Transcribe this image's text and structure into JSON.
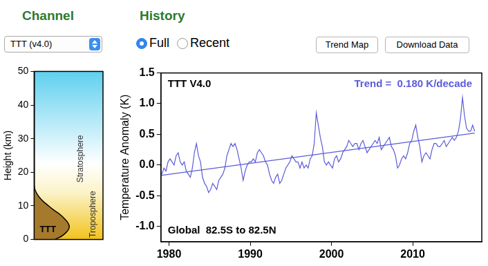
{
  "page": {
    "channel_heading": "Channel",
    "history_heading": "History",
    "channel_select": "TTT (v4.0)",
    "history_options": [
      "Full",
      "Recent"
    ],
    "history_selected": "Full",
    "buttons": [
      "Trend Map",
      "Download Data"
    ]
  },
  "chart_data": [
    {
      "type": "line",
      "ylabel": "Height (km)",
      "ylim": [
        0,
        50
      ],
      "yticks": [
        0,
        10,
        20,
        30,
        40,
        50
      ],
      "xlim": [
        0,
        1
      ],
      "tick_labels": "y",
      "grid": false,
      "annotations": [
        "Stratosphere",
        "Troposphere"
      ],
      "series": [
        {
          "name": "TTT",
          "color": "#a57a2c",
          "x": [
            0.3,
            0.4,
            0.46,
            0.5,
            0.51,
            0.49,
            0.45,
            0.4,
            0.34,
            0.27,
            0.21,
            0.15,
            0.1,
            0.06,
            0.03,
            0.01,
            0.0
          ],
          "values": [
            0,
            1,
            2,
            3,
            4,
            5,
            6,
            7,
            8,
            9,
            10,
            11,
            12,
            13,
            14,
            15,
            16
          ]
        }
      ]
    },
    {
      "type": "line",
      "ylabel": "Temperature Anomaly (K)",
      "xlim": [
        1979,
        2018.5
      ],
      "xticks": [
        1980,
        1990,
        2000,
        2010
      ],
      "ylim": [
        -1.25,
        1.5
      ],
      "yticks": [
        {
          "value": -1,
          "label": "-1.0"
        },
        -0.5,
        {
          "value": 0,
          "label": "0.0"
        },
        0.5,
        {
          "value": 1,
          "label": "1.0"
        },
        1.5
      ],
      "grid": false,
      "annotations": [
        {
          "text": "TTT V4.0",
          "color": "#000000"
        },
        {
          "text": "Trend =  0.180 K/decade",
          "color": "#5b5bd9"
        },
        {
          "text": "Global  82.5S to 82.5N",
          "color": "#000000"
        }
      ],
      "series": [
        {
          "color": "#5b5bd9",
          "line_style": "solid",
          "x": [
            1979.125,
            1979.375,
            1979.625,
            1979.875,
            1980.125,
            1980.375,
            1980.625,
            1980.875,
            1981.125,
            1981.375,
            1981.625,
            1981.875,
            1982.125,
            1982.375,
            1982.625,
            1982.875,
            1983.125,
            1983.375,
            1983.625,
            1983.875,
            1984.125,
            1984.375,
            1984.625,
            1984.875,
            1985.125,
            1985.375,
            1985.625,
            1985.875,
            1986.125,
            1986.375,
            1986.625,
            1986.875,
            1987.125,
            1987.375,
            1987.625,
            1987.875,
            1988.125,
            1988.375,
            1988.625,
            1988.875,
            1989.125,
            1989.375,
            1989.625,
            1989.875,
            1990.125,
            1990.375,
            1990.625,
            1990.875,
            1991.125,
            1991.375,
            1991.625,
            1991.875,
            1992.125,
            1992.375,
            1992.625,
            1992.875,
            1993.125,
            1993.375,
            1993.625,
            1993.875,
            1994.125,
            1994.375,
            1994.625,
            1994.875,
            1995.125,
            1995.375,
            1995.625,
            1995.875,
            1996.125,
            1996.375,
            1996.625,
            1996.875,
            1997.125,
            1997.375,
            1997.625,
            1997.875,
            1998.125,
            1998.375,
            1998.625,
            1998.875,
            1999.125,
            1999.375,
            1999.625,
            1999.875,
            2000.125,
            2000.375,
            2000.625,
            2000.875,
            2001.125,
            2001.375,
            2001.625,
            2001.875,
            2002.125,
            2002.375,
            2002.625,
            2002.875,
            2003.125,
            2003.375,
            2003.625,
            2003.875,
            2004.125,
            2004.375,
            2004.625,
            2004.875,
            2005.125,
            2005.375,
            2005.625,
            2005.875,
            2006.125,
            2006.375,
            2006.625,
            2006.875,
            2007.125,
            2007.375,
            2007.625,
            2007.875,
            2008.125,
            2008.375,
            2008.625,
            2008.875,
            2009.125,
            2009.375,
            2009.625,
            2009.875,
            2010.125,
            2010.375,
            2010.625,
            2010.875,
            2011.125,
            2011.375,
            2011.625,
            2011.875,
            2012.125,
            2012.375,
            2012.625,
            2012.875,
            2013.125,
            2013.375,
            2013.625,
            2013.875,
            2014.125,
            2014.375,
            2014.625,
            2014.875,
            2015.125,
            2015.375,
            2015.625,
            2015.875,
            2016.125,
            2016.375,
            2016.625,
            2016.875,
            2017.125,
            2017.375,
            2017.625
          ],
          "values": [
            -0.15,
            -0.05,
            -0.1,
            0.05,
            0.1,
            0.05,
            0.0,
            0.15,
            0.2,
            0.05,
            0.0,
            0.05,
            -0.1,
            -0.15,
            -0.2,
            -0.05,
            0.2,
            0.35,
            0.15,
            0.05,
            -0.2,
            -0.3,
            -0.35,
            -0.45,
            -0.4,
            -0.3,
            -0.35,
            -0.4,
            -0.25,
            -0.2,
            -0.15,
            -0.05,
            0.15,
            0.25,
            0.35,
            0.3,
            0.35,
            0.25,
            0.1,
            -0.05,
            -0.25,
            -0.1,
            0.0,
            0.05,
            0.05,
            0.1,
            0.05,
            0.2,
            0.25,
            0.2,
            0.15,
            0.05,
            0.0,
            -0.15,
            -0.25,
            -0.3,
            -0.2,
            -0.15,
            -0.3,
            -0.25,
            -0.15,
            -0.05,
            0.0,
            0.05,
            0.15,
            0.1,
            0.05,
            0.05,
            -0.05,
            0.05,
            -0.05,
            0.0,
            -0.05,
            0.1,
            0.15,
            0.35,
            0.85,
            0.65,
            0.45,
            0.3,
            0.05,
            0.0,
            0.05,
            0.0,
            -0.05,
            0.1,
            0.15,
            0.05,
            0.1,
            0.2,
            0.25,
            0.3,
            0.4,
            0.35,
            0.3,
            0.35,
            0.35,
            0.25,
            0.35,
            0.4,
            0.3,
            0.2,
            0.25,
            0.3,
            0.35,
            0.4,
            0.35,
            0.45,
            0.25,
            0.3,
            0.35,
            0.4,
            0.45,
            0.3,
            0.25,
            0.15,
            -0.05,
            0.0,
            0.1,
            0.15,
            0.1,
            0.2,
            0.35,
            0.4,
            0.55,
            0.65,
            0.45,
            0.3,
            0.05,
            0.15,
            0.2,
            0.15,
            0.1,
            0.25,
            0.35,
            0.35,
            0.3,
            0.3,
            0.35,
            0.4,
            0.3,
            0.35,
            0.4,
            0.45,
            0.4,
            0.45,
            0.55,
            0.75,
            1.1,
            0.8,
            0.6,
            0.55,
            0.55,
            0.65,
            0.55
          ]
        },
        {
          "color": "#5b5bd9",
          "line_style": "solid",
          "x": [
            1979,
            2017.625
          ],
          "values": [
            -0.17,
            0.52
          ]
        }
      ]
    }
  ]
}
